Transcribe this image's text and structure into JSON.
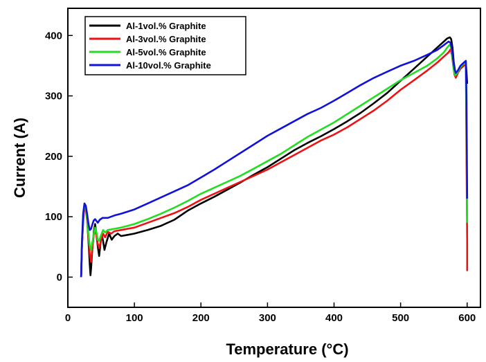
{
  "chart_data": {
    "type": "line",
    "title": "",
    "xlabel": "Temperature (°C)",
    "ylabel": "Current (A)",
    "xlim": [
      0,
      620
    ],
    "ylim": [
      -50,
      445
    ],
    "x_ticks": [
      0,
      100,
      200,
      300,
      400,
      500,
      600
    ],
    "y_ticks": [
      0,
      100,
      200,
      300,
      400
    ],
    "grid": false,
    "legend_position": "top-left",
    "series": [
      {
        "name": "Al-1vol.% Graphite",
        "color": "#000000",
        "points": [
          [
            20,
            0
          ],
          [
            21,
            45
          ],
          [
            23,
            95
          ],
          [
            25,
            120
          ],
          [
            27,
            115
          ],
          [
            29,
            95
          ],
          [
            31,
            60
          ],
          [
            33,
            20
          ],
          [
            34,
            3
          ],
          [
            35,
            15
          ],
          [
            37,
            50
          ],
          [
            39,
            75
          ],
          [
            41,
            88
          ],
          [
            43,
            70
          ],
          [
            45,
            50
          ],
          [
            47,
            35
          ],
          [
            49,
            55
          ],
          [
            51,
            70
          ],
          [
            53,
            60
          ],
          [
            55,
            45
          ],
          [
            58,
            58
          ],
          [
            62,
            72
          ],
          [
            66,
            62
          ],
          [
            70,
            68
          ],
          [
            75,
            72
          ],
          [
            80,
            68
          ],
          [
            90,
            70
          ],
          [
            100,
            72
          ],
          [
            110,
            75
          ],
          [
            120,
            78
          ],
          [
            140,
            85
          ],
          [
            160,
            95
          ],
          [
            180,
            110
          ],
          [
            200,
            122
          ],
          [
            220,
            133
          ],
          [
            240,
            145
          ],
          [
            260,
            157
          ],
          [
            280,
            170
          ],
          [
            300,
            182
          ],
          [
            320,
            196
          ],
          [
            340,
            210
          ],
          [
            360,
            222
          ],
          [
            380,
            233
          ],
          [
            400,
            245
          ],
          [
            420,
            258
          ],
          [
            440,
            272
          ],
          [
            460,
            288
          ],
          [
            480,
            305
          ],
          [
            500,
            325
          ],
          [
            520,
            345
          ],
          [
            540,
            365
          ],
          [
            555,
            380
          ],
          [
            565,
            390
          ],
          [
            570,
            395
          ],
          [
            574,
            397
          ],
          [
            576,
            394
          ],
          [
            578,
            380
          ],
          [
            580,
            355
          ],
          [
            582,
            340
          ],
          [
            585,
            335
          ],
          [
            588,
            345
          ],
          [
            592,
            352
          ],
          [
            596,
            356
          ],
          [
            598,
            355
          ],
          [
            599,
            340
          ],
          [
            600,
            320
          ]
        ]
      },
      {
        "name": "Al-3vol.% Graphite",
        "color": "#ee1111",
        "points": [
          [
            20,
            0
          ],
          [
            21,
            45
          ],
          [
            23,
            90
          ],
          [
            25,
            115
          ],
          [
            27,
            112
          ],
          [
            29,
            92
          ],
          [
            31,
            65
          ],
          [
            33,
            38
          ],
          [
            35,
            25
          ],
          [
            37,
            50
          ],
          [
            39,
            70
          ],
          [
            41,
            80
          ],
          [
            43,
            68
          ],
          [
            45,
            55
          ],
          [
            47,
            48
          ],
          [
            50,
            62
          ],
          [
            53,
            72
          ],
          [
            56,
            66
          ],
          [
            60,
            75
          ],
          [
            65,
            72
          ],
          [
            70,
            76
          ],
          [
            80,
            78
          ],
          [
            90,
            80
          ],
          [
            100,
            82
          ],
          [
            120,
            90
          ],
          [
            140,
            98
          ],
          [
            160,
            106
          ],
          [
            180,
            116
          ],
          [
            200,
            128
          ],
          [
            220,
            138
          ],
          [
            240,
            148
          ],
          [
            260,
            158
          ],
          [
            280,
            168
          ],
          [
            300,
            178
          ],
          [
            320,
            190
          ],
          [
            340,
            202
          ],
          [
            360,
            214
          ],
          [
            380,
            226
          ],
          [
            400,
            236
          ],
          [
            420,
            248
          ],
          [
            440,
            262
          ],
          [
            460,
            276
          ],
          [
            480,
            292
          ],
          [
            500,
            310
          ],
          [
            520,
            326
          ],
          [
            540,
            342
          ],
          [
            555,
            355
          ],
          [
            565,
            365
          ],
          [
            572,
            372
          ],
          [
            575,
            377
          ],
          [
            577,
            368
          ],
          [
            579,
            350
          ],
          [
            581,
            335
          ],
          [
            583,
            330
          ],
          [
            586,
            338
          ],
          [
            590,
            345
          ],
          [
            595,
            350
          ],
          [
            598,
            352
          ],
          [
            599,
            200
          ],
          [
            600,
            60
          ],
          [
            600,
            10
          ]
        ]
      },
      {
        "name": "Al-5vol.% Graphite",
        "color": "#22dd22",
        "points": [
          [
            20,
            0
          ],
          [
            21,
            50
          ],
          [
            23,
            100
          ],
          [
            25,
            120
          ],
          [
            27,
            114
          ],
          [
            29,
            95
          ],
          [
            31,
            70
          ],
          [
            33,
            52
          ],
          [
            35,
            45
          ],
          [
            37,
            58
          ],
          [
            39,
            72
          ],
          [
            41,
            82
          ],
          [
            43,
            74
          ],
          [
            45,
            62
          ],
          [
            47,
            60
          ],
          [
            50,
            70
          ],
          [
            53,
            78
          ],
          [
            56,
            74
          ],
          [
            60,
            78
          ],
          [
            70,
            80
          ],
          [
            80,
            82
          ],
          [
            90,
            85
          ],
          [
            100,
            88
          ],
          [
            120,
            96
          ],
          [
            140,
            105
          ],
          [
            160,
            115
          ],
          [
            180,
            126
          ],
          [
            200,
            138
          ],
          [
            220,
            148
          ],
          [
            240,
            158
          ],
          [
            260,
            168
          ],
          [
            280,
            180
          ],
          [
            300,
            192
          ],
          [
            320,
            204
          ],
          [
            340,
            218
          ],
          [
            360,
            232
          ],
          [
            380,
            244
          ],
          [
            400,
            256
          ],
          [
            420,
            270
          ],
          [
            440,
            284
          ],
          [
            460,
            298
          ],
          [
            480,
            312
          ],
          [
            500,
            326
          ],
          [
            520,
            338
          ],
          [
            540,
            350
          ],
          [
            555,
            362
          ],
          [
            565,
            372
          ],
          [
            570,
            380
          ],
          [
            574,
            385
          ],
          [
            576,
            380
          ],
          [
            578,
            362
          ],
          [
            580,
            342
          ],
          [
            582,
            334
          ],
          [
            585,
            338
          ],
          [
            590,
            348
          ],
          [
            595,
            354
          ],
          [
            598,
            357
          ],
          [
            599,
            250
          ],
          [
            600,
            90
          ]
        ]
      },
      {
        "name": "Al-10vol.% Graphite",
        "color": "#1111dd",
        "points": [
          [
            20,
            0
          ],
          [
            21,
            55
          ],
          [
            23,
            105
          ],
          [
            25,
            122
          ],
          [
            27,
            118
          ],
          [
            29,
            104
          ],
          [
            31,
            88
          ],
          [
            33,
            78
          ],
          [
            35,
            80
          ],
          [
            37,
            88
          ],
          [
            39,
            94
          ],
          [
            41,
            96
          ],
          [
            43,
            93
          ],
          [
            45,
            90
          ],
          [
            48,
            95
          ],
          [
            52,
            98
          ],
          [
            60,
            98
          ],
          [
            70,
            102
          ],
          [
            80,
            105
          ],
          [
            100,
            112
          ],
          [
            120,
            122
          ],
          [
            140,
            132
          ],
          [
            160,
            142
          ],
          [
            180,
            152
          ],
          [
            200,
            165
          ],
          [
            220,
            178
          ],
          [
            240,
            192
          ],
          [
            260,
            206
          ],
          [
            280,
            220
          ],
          [
            300,
            234
          ],
          [
            320,
            246
          ],
          [
            340,
            258
          ],
          [
            360,
            270
          ],
          [
            380,
            280
          ],
          [
            400,
            292
          ],
          [
            420,
            305
          ],
          [
            440,
            318
          ],
          [
            460,
            330
          ],
          [
            480,
            340
          ],
          [
            500,
            350
          ],
          [
            520,
            358
          ],
          [
            540,
            368
          ],
          [
            555,
            376
          ],
          [
            565,
            384
          ],
          [
            572,
            390
          ],
          [
            575,
            388
          ],
          [
            577,
            378
          ],
          [
            579,
            360
          ],
          [
            581,
            345
          ],
          [
            583,
            338
          ],
          [
            586,
            342
          ],
          [
            590,
            350
          ],
          [
            595,
            355
          ],
          [
            598,
            358
          ],
          [
            599,
            300
          ],
          [
            600,
            130
          ]
        ]
      }
    ]
  }
}
